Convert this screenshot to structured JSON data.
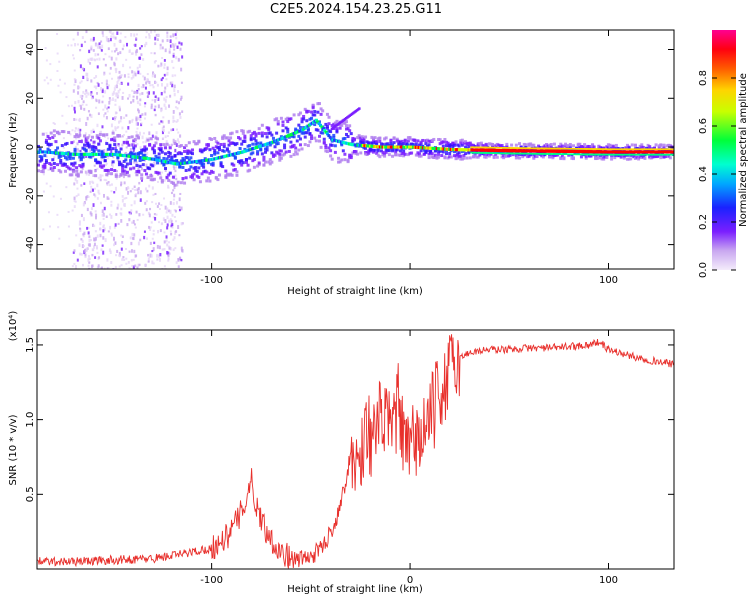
{
  "figure_title": "C2E5.2024.154.23.25.G11",
  "colors": {
    "axis": "#000000",
    "snr_line": "#e8302c",
    "colormap": [
      "#f2e6fa",
      "#8a2be2",
      "#2a00ff",
      "#00c8ff",
      "#00ff40",
      "#ffff00",
      "#ff6600",
      "#ff0000",
      "#ff0080"
    ]
  },
  "chart_data": [
    {
      "type": "heatmap",
      "title": "",
      "xlabel": "Height of straight line (km)",
      "ylabel": "Frequency (Hz)",
      "xlim": [
        -188,
        133
      ],
      "ylim": [
        -50,
        48
      ],
      "x_ticks": [
        -100,
        0,
        100
      ],
      "x_tick_labels": [
        "-100",
        "",
        "100"
      ],
      "y_ticks": [
        -40,
        -20,
        0,
        20,
        40
      ],
      "y_tick_labels": [
        "-40",
        "-20",
        "0",
        "20",
        "40"
      ],
      "grid": false,
      "ridge": {
        "description_points": [
          {
            "x": -185,
            "y": -2
          },
          {
            "x": -170,
            "y": -3
          },
          {
            "x": -150,
            "y": -3
          },
          {
            "x": -130,
            "y": -5
          },
          {
            "x": -118,
            "y": -7
          },
          {
            "x": -100,
            "y": -5
          },
          {
            "x": -85,
            "y": -2
          },
          {
            "x": -70,
            "y": 2
          },
          {
            "x": -55,
            "y": 7
          },
          {
            "x": -48,
            "y": 11
          },
          {
            "x": -40,
            "y": 3
          },
          {
            "x": -30,
            "y": 1
          },
          {
            "x": -15,
            "y": 0
          },
          {
            "x": 0,
            "y": 0
          },
          {
            "x": 20,
            "y": -1
          },
          {
            "x": 50,
            "y": -1.5
          },
          {
            "x": 100,
            "y": -2
          },
          {
            "x": 133,
            "y": -2
          }
        ]
      },
      "colorbar": {
        "label": "Normalized spectral amplitude",
        "range": [
          0,
          1
        ],
        "ticks": [
          0.0,
          0.2,
          0.4,
          0.6,
          0.8
        ],
        "tick_labels": [
          "0.0",
          "0.2",
          "0.4",
          "0.6",
          "0.8"
        ]
      }
    },
    {
      "type": "line",
      "title": "",
      "xlabel": "Height of straight line (km)",
      "ylabel": "SNR (10 * v/v)",
      "y_multiplier": "(x10⁴)",
      "xlim": [
        -188,
        133
      ],
      "ylim": [
        0,
        1.6
      ],
      "x_ticks": [
        -100,
        0,
        100
      ],
      "x_tick_labels": [
        "-100",
        "0",
        "100"
      ],
      "y_ticks": [
        0.5,
        1.0,
        1.5
      ],
      "y_tick_labels": [
        "0.5",
        "1.0",
        "1.5"
      ],
      "grid": false,
      "series": [
        {
          "name": "",
          "x": [
            -188,
            -170,
            -150,
            -130,
            -115,
            -100,
            -92,
            -86,
            -82,
            -80,
            -78,
            -74,
            -70,
            -64,
            -58,
            -50,
            -44,
            -38,
            -34,
            -30,
            -26,
            -22,
            -18,
            -14,
            -10,
            -6,
            -2,
            2,
            6,
            10,
            14,
            18,
            22,
            26,
            30,
            40,
            50,
            60,
            70,
            80,
            90,
            95,
            100,
            110,
            120,
            133
          ],
          "values": [
            0.05,
            0.05,
            0.06,
            0.07,
            0.1,
            0.14,
            0.22,
            0.35,
            0.5,
            0.6,
            0.45,
            0.3,
            0.2,
            0.1,
            0.06,
            0.08,
            0.15,
            0.3,
            0.5,
            0.75,
            0.7,
            0.95,
            0.85,
            1.05,
            0.9,
            1.1,
            0.75,
            0.85,
            0.9,
            1.0,
            1.15,
            1.25,
            1.38,
            1.42,
            1.45,
            1.47,
            1.47,
            1.48,
            1.48,
            1.49,
            1.5,
            1.52,
            1.47,
            1.43,
            1.4,
            1.37
          ]
        }
      ]
    }
  ]
}
